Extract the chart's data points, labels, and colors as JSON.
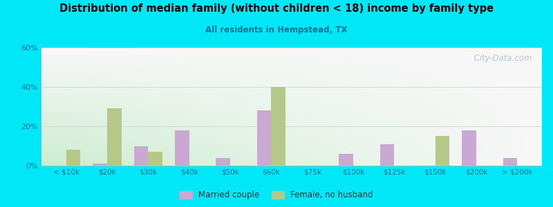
{
  "title": "Distribution of median family (without children < 18) income by family type",
  "subtitle": "All residents in Hempstead, TX",
  "categories": [
    "< $10k",
    "$20k",
    "$30k",
    "$40k",
    "$50k",
    "$60k",
    "$75k",
    "$100k",
    "$125k",
    "$150k",
    "$200k",
    "> $200k"
  ],
  "married_couple": [
    0,
    1,
    10,
    18,
    4,
    28,
    0,
    6,
    11,
    0,
    18,
    4
  ],
  "female_no_husband": [
    8,
    29,
    7,
    0,
    0,
    40,
    0,
    0,
    0,
    15,
    0,
    0
  ],
  "married_color": "#c9a8d4",
  "female_color": "#b5c888",
  "background_outer": "#00e8f8",
  "title_color": "#000000",
  "subtitle_color": "#007090",
  "tick_color": "#007090",
  "grid_color": "#ccddcc",
  "ylim": [
    0,
    60
  ],
  "yticks": [
    0,
    20,
    40,
    60
  ],
  "bar_width": 0.35,
  "watermark": "  City-Data.com",
  "legend_married": "Married couple",
  "legend_female": "Female, no husband"
}
